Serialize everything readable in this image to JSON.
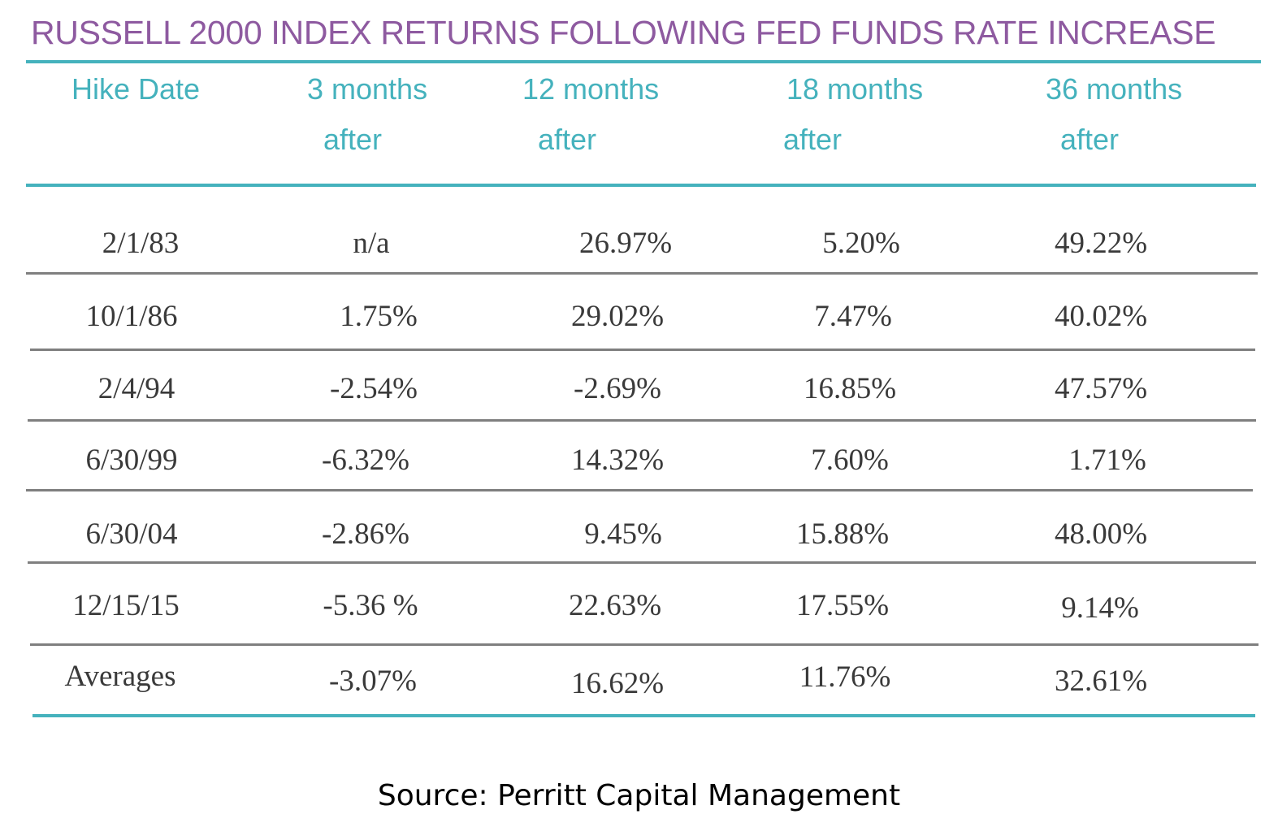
{
  "chart_data": {
    "type": "table",
    "title": "RUSSELL 2000 INDEX RETURNS FOLLOWING FED FUNDS RATE INCREASE",
    "columns": [
      {
        "line1": "Hike Date",
        "line2": ""
      },
      {
        "line1": "3 months",
        "line2": "after"
      },
      {
        "line1": "12 months",
        "line2": "after"
      },
      {
        "line1": "18 months",
        "line2": "after"
      },
      {
        "line1": "36 months",
        "line2": "after"
      }
    ],
    "rows": [
      [
        "2/1/83",
        "n/a",
        "26.97%",
        "5.20%",
        "49.22%"
      ],
      [
        "10/1/86",
        "1.75%",
        "29.02%",
        "7.47%",
        "40.02%"
      ],
      [
        "2/4/94",
        "-2.54%",
        "-2.69%",
        "16.85%",
        "47.57%"
      ],
      [
        "6/30/99",
        "-6.32%",
        "14.32%",
        "7.60%",
        "1.71%"
      ],
      [
        "6/30/04",
        "-2.86%",
        "9.45%",
        "15.88%",
        "48.00%"
      ],
      [
        "12/15/15",
        "-5.36 %",
        "22.63%",
        "17.55%",
        "9.14%"
      ],
      [
        "Averages",
        "-3.07%",
        "16.62%",
        "11.76%",
        "32.61%"
      ]
    ],
    "source": "Source: Perritt Capital Management",
    "colors": {
      "title": "#8e5aa0",
      "header": "#45b2bd",
      "rule": "#45b2bd",
      "row_divider": "#7f7f7f",
      "cell_text": "#3a3a3a"
    }
  }
}
